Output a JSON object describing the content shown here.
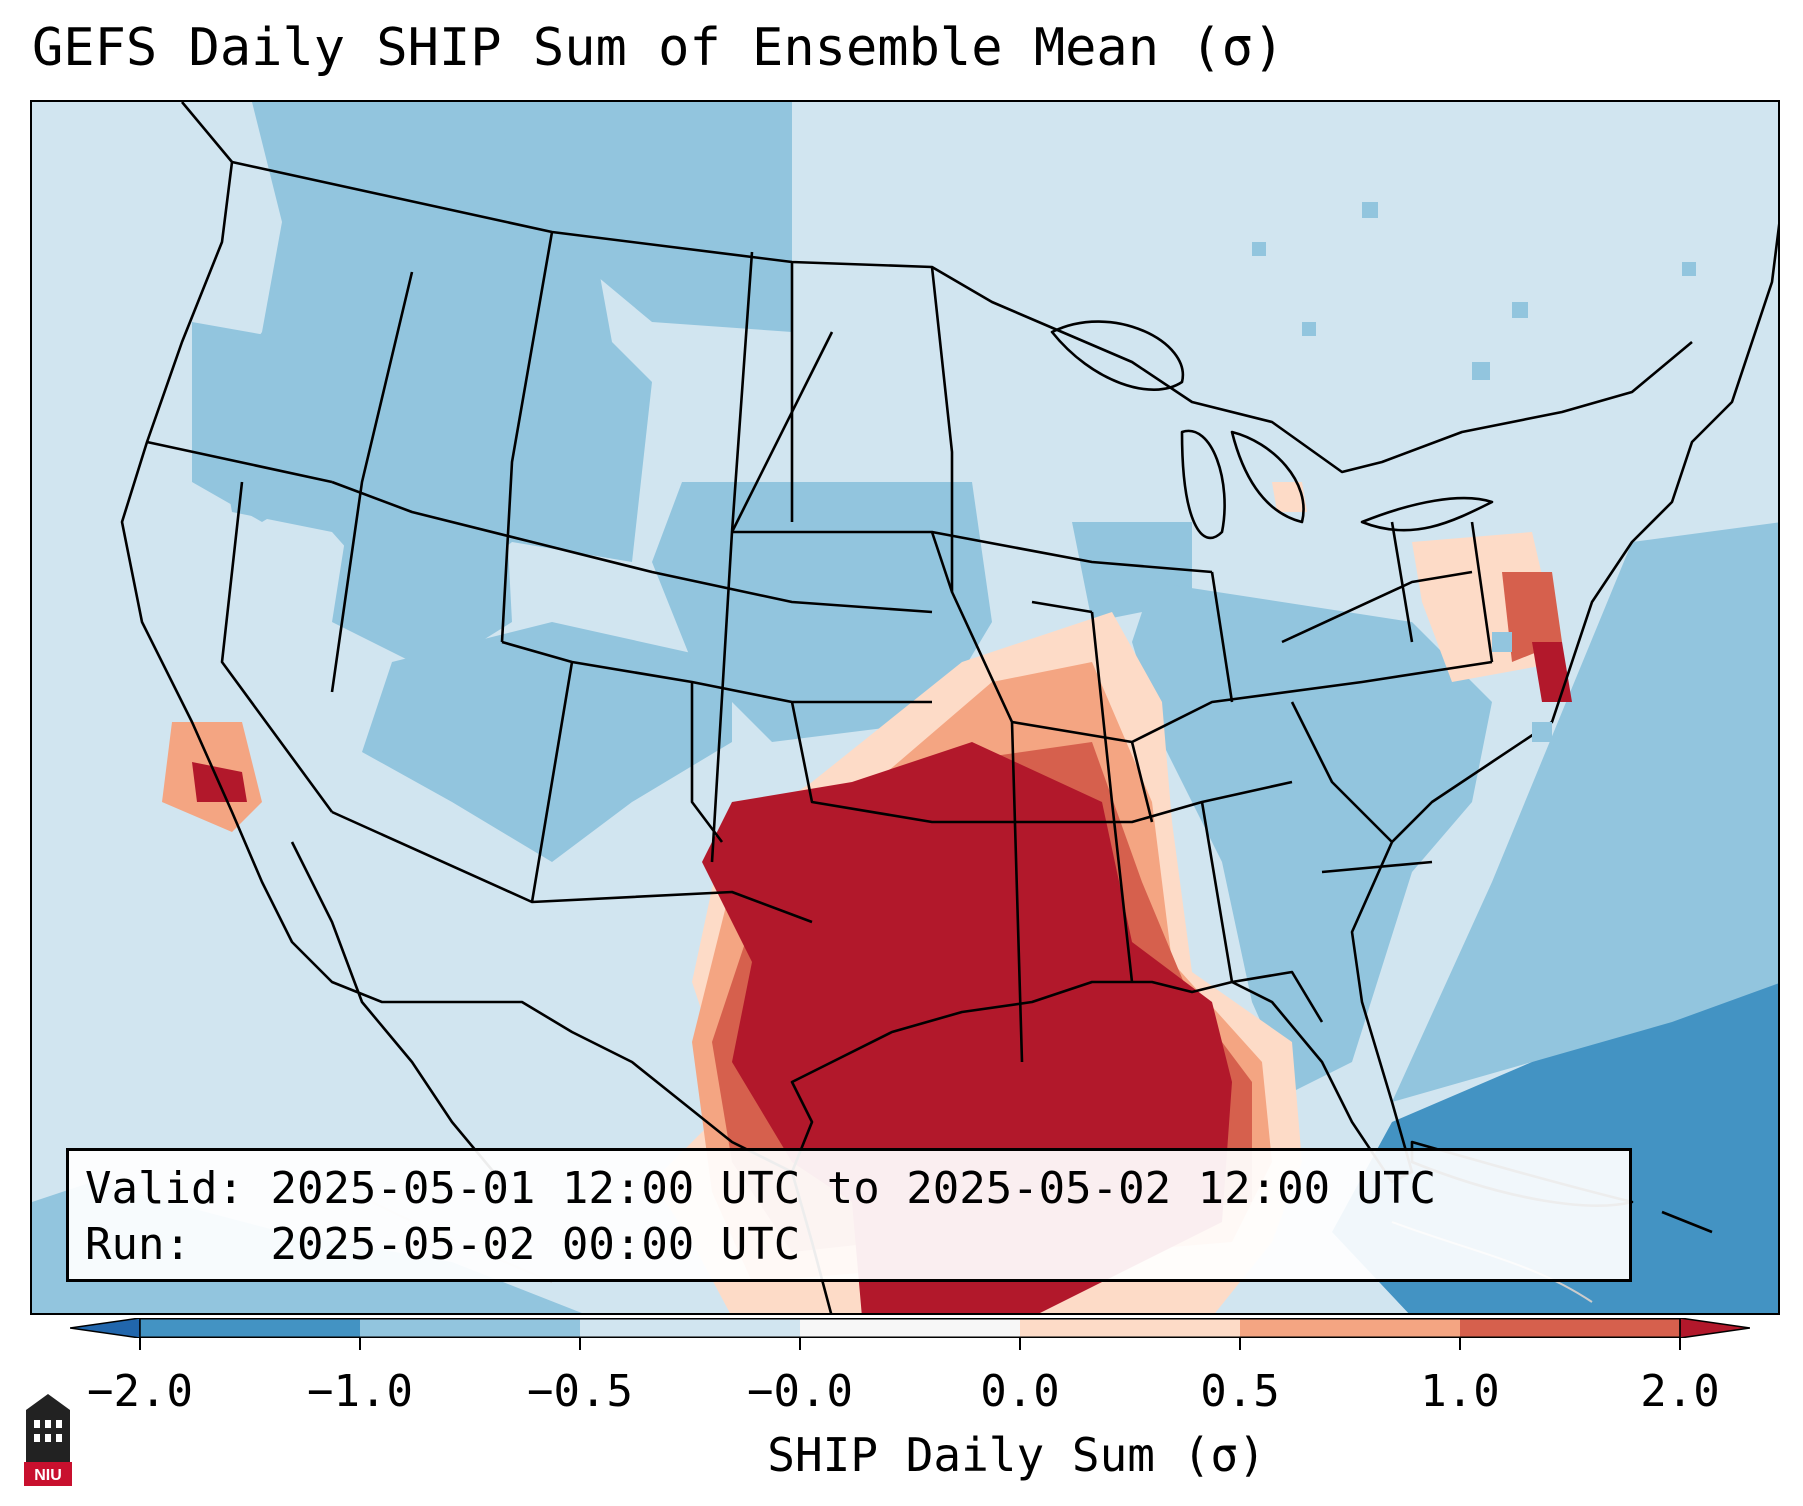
{
  "title": "GEFS Daily SHIP Sum of Ensemble Mean (σ)",
  "info": {
    "valid_label": "Valid:",
    "valid_value": "2025-05-01 12:00 UTC to 2025-05-02 12:00 UTC",
    "run_label": "Run:",
    "run_value": "2025-05-02 00:00 UTC"
  },
  "colorbar": {
    "label": "SHIP Daily Sum (σ)",
    "ticks": [
      "−2.0",
      "−1.0",
      "−0.5",
      "−0.0",
      "0.0",
      "0.5",
      "1.0",
      "2.0"
    ],
    "bins": [
      {
        "range": "< -2.0",
        "color": "#2166ac"
      },
      {
        "range": "-2.0 to -1.0",
        "color": "#4393c3"
      },
      {
        "range": "-1.0 to -0.5",
        "color": "#92c5de"
      },
      {
        "range": "-0.5 to -0.0",
        "color": "#d1e5f0"
      },
      {
        "range": "-0.0 to 0.0",
        "color": "#f7f7f7"
      },
      {
        "range": "0.0 to 0.5",
        "color": "#fddbc7"
      },
      {
        "range": "0.5 to 1.0",
        "color": "#f4a582"
      },
      {
        "range": "1.0 to 2.0",
        "color": "#d6604d"
      },
      {
        "range": "> 2.0",
        "color": "#b2182b"
      }
    ]
  },
  "logo": {
    "text": "NIU",
    "color": "#c8102e"
  },
  "map": {
    "region": "Contiguous United States",
    "field": "SHIP daily sum",
    "maxima_regions": [
      "Texas",
      "Oklahoma",
      "Arkansas",
      "Louisiana",
      "Mississippi",
      "Gulf of Mexico",
      "Southern California",
      "Maryland"
    ]
  }
}
